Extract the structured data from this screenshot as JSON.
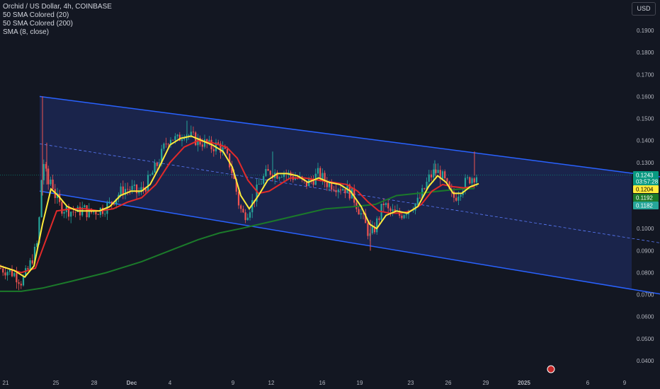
{
  "legend": {
    "title": "Orchid / US Dollar, 4h, COINBASE",
    "indicators": [
      "50 SMA Colored (20)",
      "50 SMA Colored (200)",
      "SMA (8, close)"
    ]
  },
  "currency_button": "USD",
  "colors": {
    "background": "#131722",
    "channel_line": "#2962ff",
    "channel_fill": "#1e2a5a",
    "up_candle": "#26a69a",
    "down_candle": "#ef5350",
    "sma20": "#e22a2a",
    "sma200": "#1b7a2a",
    "sma8": "#ffeb3b",
    "text": "#d1d4dc",
    "axis_text": "#b2b5be"
  },
  "chart_data": {
    "type": "candlestick",
    "y_ticks": [
      "0.1900",
      "0.1800",
      "0.1700",
      "0.1600",
      "0.1500",
      "0.1400",
      "0.1300",
      "0.1000",
      "0.0900",
      "0.0800",
      "0.0700",
      "0.0600",
      "0.0500",
      "0.0400"
    ],
    "x_ticks": [
      "21",
      "25",
      "28",
      "Dec",
      "4",
      "9",
      "12",
      "16",
      "19",
      "23",
      "26",
      "29",
      "2025",
      "6",
      "9"
    ],
    "price_labels": [
      {
        "value": "0.1243",
        "sub": "03:57:28",
        "color": "#089981",
        "text_color": "#ffffff"
      },
      {
        "value": "0.1204",
        "color": "#ffeb3b",
        "text_color": "#000000"
      },
      {
        "value": "0.1192",
        "color": "#1b7a2a",
        "text_color": "#ffffff"
      },
      {
        "value": "0.1182",
        "color": "#26a69a",
        "text_color": "#ffffff"
      }
    ],
    "ylim": [
      0.035,
      0.195
    ],
    "series": [
      {
        "name": "SMA (8, close)",
        "type": "line"
      },
      {
        "name": "50 SMA Colored (20)",
        "type": "line"
      },
      {
        "name": "50 SMA Colored (200)",
        "type": "line"
      }
    ],
    "close_path": [
      [
        0,
        0.082
      ],
      [
        10,
        0.081
      ],
      [
        20,
        0.0795
      ],
      [
        30,
        0.076
      ],
      [
        38,
        0.08
      ],
      [
        45,
        0.086
      ],
      [
        52,
        0.092
      ],
      [
        57,
        0.11
      ],
      [
        60,
        0.133
      ],
      [
        64,
        0.126
      ],
      [
        68,
        0.12
      ],
      [
        72,
        0.123
      ],
      [
        78,
        0.115
      ],
      [
        85,
        0.11
      ],
      [
        92,
        0.109
      ],
      [
        100,
        0.108
      ],
      [
        110,
        0.1075
      ],
      [
        118,
        0.109
      ],
      [
        125,
        0.107
      ],
      [
        135,
        0.108
      ],
      [
        145,
        0.109
      ],
      [
        155,
        0.111
      ],
      [
        165,
        0.115
      ],
      [
        175,
        0.118
      ],
      [
        185,
        0.118
      ],
      [
        195,
        0.116
      ],
      [
        205,
        0.119
      ],
      [
        215,
        0.125
      ],
      [
        225,
        0.131
      ],
      [
        233,
        0.138
      ],
      [
        240,
        0.142
      ],
      [
        250,
        0.14
      ],
      [
        260,
        0.144
      ],
      [
        268,
        0.142
      ],
      [
        278,
        0.14
      ],
      [
        288,
        0.139
      ],
      [
        298,
        0.137
      ],
      [
        308,
        0.138
      ],
      [
        318,
        0.134
      ],
      [
        326,
        0.128
      ],
      [
        332,
        0.12
      ],
      [
        338,
        0.11
      ],
      [
        344,
        0.106
      ],
      [
        350,
        0.108
      ],
      [
        358,
        0.113
      ],
      [
        366,
        0.12
      ],
      [
        374,
        0.124
      ],
      [
        382,
        0.126
      ],
      [
        390,
        0.125
      ],
      [
        400,
        0.126
      ],
      [
        410,
        0.124
      ],
      [
        420,
        0.123
      ],
      [
        430,
        0.12
      ],
      [
        440,
        0.122
      ],
      [
        450,
        0.125
      ],
      [
        460,
        0.121
      ],
      [
        470,
        0.12
      ],
      [
        480,
        0.119
      ],
      [
        490,
        0.118
      ],
      [
        498,
        0.115
      ],
      [
        505,
        0.11
      ],
      [
        512,
        0.105
      ],
      [
        518,
        0.1
      ],
      [
        523,
        0.096
      ],
      [
        530,
        0.101
      ],
      [
        536,
        0.106
      ],
      [
        542,
        0.112
      ],
      [
        548,
        0.108
      ],
      [
        556,
        0.107
      ],
      [
        564,
        0.106
      ],
      [
        572,
        0.108
      ],
      [
        580,
        0.11
      ],
      [
        590,
        0.112
      ],
      [
        598,
        0.117
      ],
      [
        606,
        0.123
      ],
      [
        614,
        0.126
      ],
      [
        622,
        0.125
      ],
      [
        630,
        0.12
      ],
      [
        636,
        0.115
      ],
      [
        642,
        0.114
      ],
      [
        650,
        0.118
      ],
      [
        658,
        0.121
      ],
      [
        664,
        0.123
      ],
      [
        670,
        0.124
      ],
      [
        676,
        0.1243
      ]
    ],
    "sma8_path": [
      [
        0,
        0.083
      ],
      [
        20,
        0.081
      ],
      [
        35,
        0.078
      ],
      [
        48,
        0.083
      ],
      [
        60,
        0.102
      ],
      [
        72,
        0.118
      ],
      [
        82,
        0.115
      ],
      [
        95,
        0.11
      ],
      [
        110,
        0.108
      ],
      [
        125,
        0.108
      ],
      [
        140,
        0.108
      ],
      [
        155,
        0.11
      ],
      [
        170,
        0.115
      ],
      [
        185,
        0.117
      ],
      [
        200,
        0.117
      ],
      [
        212,
        0.12
      ],
      [
        225,
        0.128
      ],
      [
        240,
        0.138
      ],
      [
        255,
        0.141
      ],
      [
        270,
        0.142
      ],
      [
        285,
        0.14
      ],
      [
        300,
        0.138
      ],
      [
        315,
        0.135
      ],
      [
        328,
        0.128
      ],
      [
        340,
        0.115
      ],
      [
        352,
        0.109
      ],
      [
        365,
        0.115
      ],
      [
        378,
        0.122
      ],
      [
        392,
        0.125
      ],
      [
        405,
        0.125
      ],
      [
        420,
        0.124
      ],
      [
        435,
        0.121
      ],
      [
        450,
        0.123
      ],
      [
        465,
        0.121
      ],
      [
        480,
        0.12
      ],
      [
        495,
        0.117
      ],
      [
        510,
        0.11
      ],
      [
        522,
        0.102
      ],
      [
        532,
        0.1
      ],
      [
        545,
        0.106
      ],
      [
        560,
        0.108
      ],
      [
        575,
        0.107
      ],
      [
        590,
        0.11
      ],
      [
        605,
        0.119
      ],
      [
        618,
        0.124
      ],
      [
        630,
        0.121
      ],
      [
        640,
        0.116
      ],
      [
        652,
        0.116
      ],
      [
        664,
        0.119
      ],
      [
        676,
        0.1204
      ]
    ],
    "sma20_path": [
      [
        0,
        0.083
      ],
      [
        30,
        0.08
      ],
      [
        50,
        0.082
      ],
      [
        65,
        0.095
      ],
      [
        80,
        0.108
      ],
      [
        100,
        0.109
      ],
      [
        120,
        0.109
      ],
      [
        140,
        0.108
      ],
      [
        160,
        0.109
      ],
      [
        180,
        0.112
      ],
      [
        200,
        0.114
      ],
      [
        220,
        0.12
      ],
      [
        240,
        0.13
      ],
      [
        260,
        0.137
      ],
      [
        280,
        0.14
      ],
      [
        300,
        0.139
      ],
      [
        320,
        0.137
      ],
      [
        335,
        0.132
      ],
      [
        350,
        0.122
      ],
      [
        365,
        0.116
      ],
      [
        380,
        0.117
      ],
      [
        395,
        0.12
      ],
      [
        410,
        0.123
      ],
      [
        430,
        0.123
      ],
      [
        450,
        0.122
      ],
      [
        470,
        0.121
      ],
      [
        490,
        0.12
      ],
      [
        505,
        0.117
      ],
      [
        520,
        0.112
      ],
      [
        535,
        0.108
      ],
      [
        550,
        0.107
      ],
      [
        565,
        0.107
      ],
      [
        580,
        0.108
      ],
      [
        595,
        0.111
      ],
      [
        610,
        0.117
      ],
      [
        625,
        0.12
      ],
      [
        640,
        0.119
      ],
      [
        655,
        0.1185
      ],
      [
        670,
        0.1192
      ]
    ],
    "sma200_path": [
      [
        0,
        0.0715
      ],
      [
        30,
        0.0715
      ],
      [
        60,
        0.073
      ],
      [
        100,
        0.076
      ],
      [
        150,
        0.08
      ],
      [
        200,
        0.085
      ],
      [
        240,
        0.09
      ],
      [
        280,
        0.095
      ],
      [
        310,
        0.098
      ],
      [
        340,
        0.1
      ],
      [
        380,
        0.103
      ],
      [
        420,
        0.106
      ],
      [
        460,
        0.109
      ],
      [
        500,
        0.11
      ],
      [
        530,
        0.111
      ],
      [
        560,
        0.115
      ],
      [
        590,
        0.116
      ],
      [
        620,
        0.117
      ],
      [
        650,
        0.118
      ],
      [
        670,
        0.1182
      ]
    ],
    "channel": {
      "upper": [
        [
          56,
          0.16
        ],
        [
          932,
          0.1235
        ]
      ],
      "lower": [
        [
          56,
          0.117
        ],
        [
          932,
          0.0703
        ]
      ],
      "mid": [
        [
          56,
          0.1385
        ],
        [
          932,
          0.0935
        ]
      ]
    }
  }
}
